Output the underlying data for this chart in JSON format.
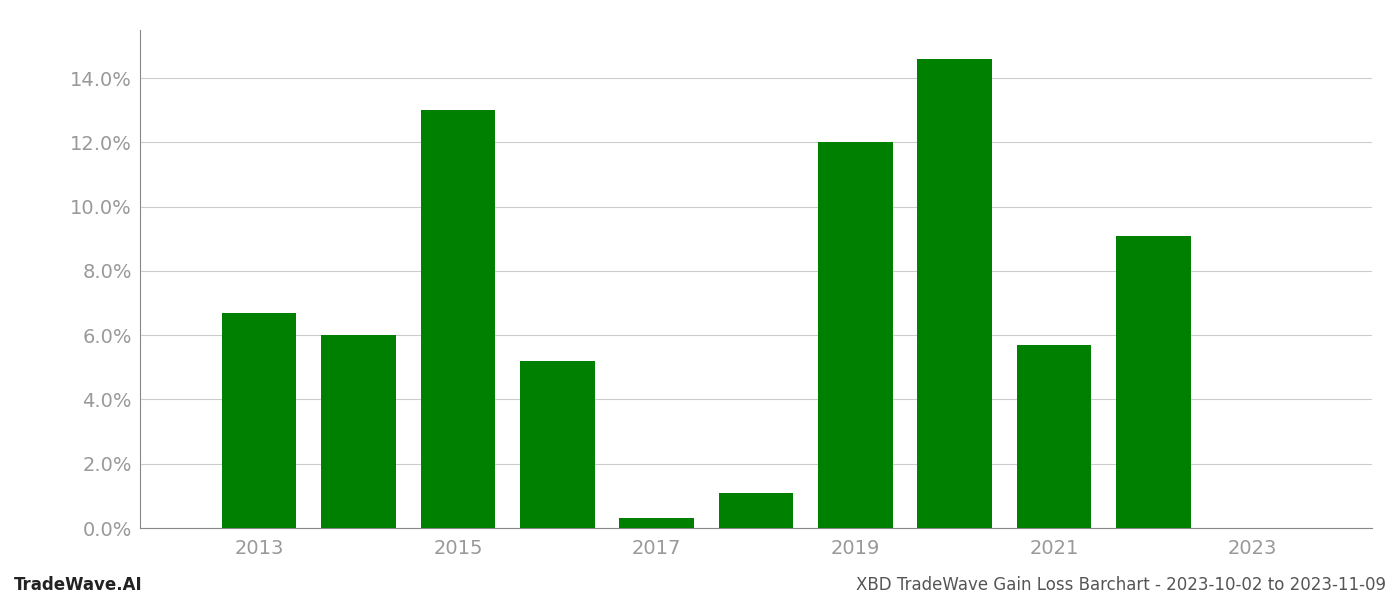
{
  "years": [
    2013,
    2014,
    2015,
    2016,
    2017,
    2018,
    2019,
    2020,
    2021,
    2022,
    2023
  ],
  "values": [
    0.067,
    0.06,
    0.13,
    0.052,
    0.003,
    0.011,
    0.12,
    0.146,
    0.057,
    0.091,
    null
  ],
  "bar_color": "#008000",
  "background_color": "#ffffff",
  "grid_color": "#cccccc",
  "axis_color": "#888888",
  "tick_label_color": "#999999",
  "footer_left": "TradeWave.AI",
  "footer_right": "XBD TradeWave Gain Loss Barchart - 2023-10-02 to 2023-11-09",
  "footer_color": "#555555",
  "ylim": [
    0,
    0.155
  ],
  "yticks": [
    0.0,
    0.02,
    0.04,
    0.06,
    0.08,
    0.1,
    0.12,
    0.14
  ],
  "xticks": [
    2013,
    2015,
    2017,
    2019,
    2021,
    2023
  ],
  "bar_width": 0.75,
  "figsize": [
    14.0,
    6.0
  ],
  "dpi": 100,
  "xlim": [
    2011.8,
    2024.2
  ]
}
